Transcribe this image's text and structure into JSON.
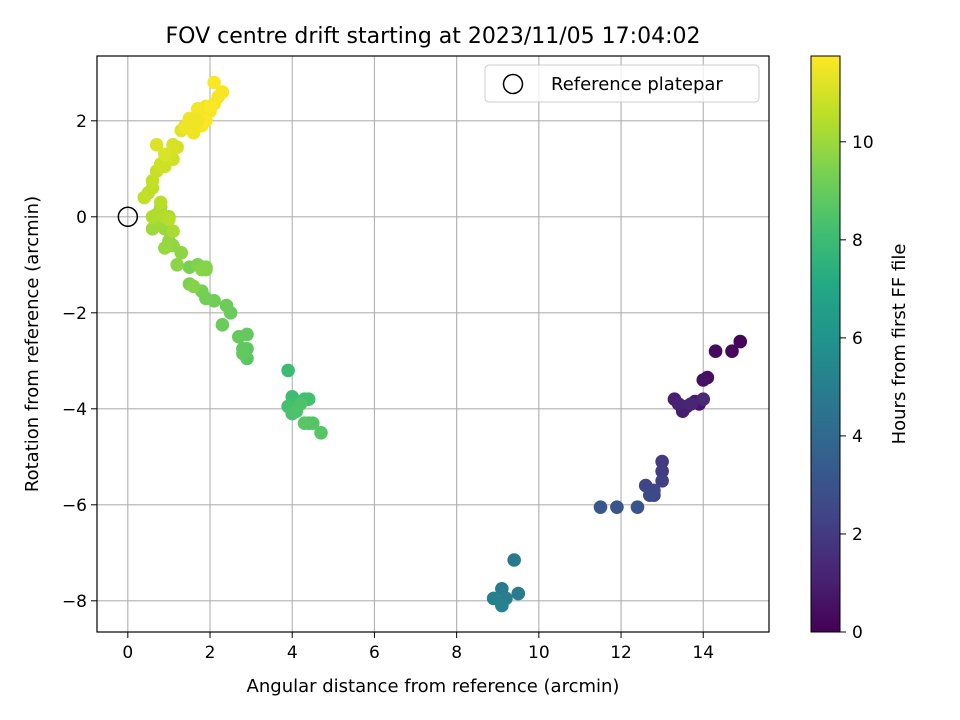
{
  "chart_data": {
    "type": "scatter",
    "title": "FOV centre drift starting at 2023/11/05 17:04:02",
    "xlabel": "Angular distance from reference (arcmin)",
    "ylabel": "Rotation from reference (arcmin)",
    "xlim": [
      -0.75,
      15.6
    ],
    "ylim": [
      -8.65,
      3.35
    ],
    "xticks": [
      0,
      2,
      4,
      6,
      8,
      10,
      12,
      14
    ],
    "yticks": [
      -8,
      -6,
      -4,
      -2,
      0,
      2
    ],
    "grid": true,
    "legend": {
      "placement": "top-right",
      "entries": [
        {
          "label": "Reference platepar",
          "marker": "open-circle"
        }
      ]
    },
    "reference_point": {
      "x": 0,
      "y": 0
    },
    "colorbar": {
      "label": "Hours from first FF file",
      "colormap": "viridis",
      "range": [
        0,
        11.75
      ],
      "ticks": [
        0,
        2,
        4,
        6,
        8,
        10
      ]
    },
    "series": [
      {
        "x": [
          14.9,
          14.7,
          14.3,
          14.1,
          14.0,
          13.9,
          13.8,
          13.6,
          13.5,
          13.3,
          13.4,
          13.7,
          14.0,
          13.0,
          13.0,
          13.0,
          12.8,
          12.6,
          12.8,
          12.7,
          12.4,
          11.9,
          11.5,
          9.4,
          9.1,
          9.5,
          9.2,
          8.9,
          9.1,
          3.9,
          4.0,
          4.1,
          4.3,
          4.4,
          4.0,
          3.9,
          4.0,
          4.1,
          4.2,
          4.4,
          4.5,
          4.7,
          4.3,
          2.9,
          2.9,
          2.8,
          2.8,
          2.9,
          2.7,
          2.5,
          2.3,
          2.4,
          2.1,
          1.9,
          1.8,
          1.8,
          1.5,
          1.5,
          1.7,
          1.9,
          1.9,
          1.6,
          1.8,
          1.2,
          1.3,
          1.1,
          1.0,
          0.9,
          0.9,
          0.8,
          0.6,
          0.7,
          1.0,
          1.1,
          0.8,
          0.7,
          0.6,
          0.9,
          1.0,
          0.8,
          0.5,
          0.6,
          0.4,
          0.6,
          0.7,
          0.8,
          0.9,
          1.1,
          1.0,
          1.2,
          1.1,
          0.9,
          0.7,
          1.3,
          1.4,
          1.5,
          1.6,
          1.7,
          1.8,
          1.9,
          1.8,
          2.0,
          2.1,
          2.2,
          2.3,
          2.1,
          2.0,
          1.9,
          1.6,
          1.5,
          1.7,
          1.5,
          1.4,
          1.7
        ],
        "y": [
          -2.6,
          -2.8,
          -2.8,
          -3.35,
          -3.4,
          -3.9,
          -3.85,
          -3.95,
          -4.05,
          -3.8,
          -3.9,
          -3.9,
          -3.8,
          -5.1,
          -5.3,
          -5.5,
          -5.8,
          -5.6,
          -5.7,
          -5.8,
          -6.05,
          -6.05,
          -6.05,
          -7.15,
          -7.75,
          -7.85,
          -7.95,
          -7.95,
          -8.1,
          -3.2,
          -3.75,
          -3.9,
          -3.8,
          -3.8,
          -4.0,
          -3.95,
          -4.1,
          -4.05,
          -3.9,
          -4.3,
          -4.3,
          -4.5,
          -4.3,
          -2.95,
          -2.75,
          -2.75,
          -2.85,
          -2.45,
          -2.5,
          -2.0,
          -2.25,
          -1.85,
          -1.75,
          -1.7,
          -1.55,
          -1.05,
          -1.05,
          -1.4,
          -1.0,
          -1.1,
          -1.05,
          -1.45,
          -1.1,
          -1.0,
          -0.75,
          -0.6,
          -0.5,
          -0.65,
          -0.25,
          -0.15,
          -0.25,
          -0.05,
          0.0,
          -0.3,
          0.2,
          0.05,
          0.0,
          0.0,
          -0.05,
          0.3,
          0.5,
          0.6,
          0.4,
          0.75,
          0.95,
          1.1,
          1.05,
          1.2,
          1.3,
          1.45,
          1.5,
          1.3,
          1.5,
          1.8,
          1.9,
          2.0,
          1.85,
          2.1,
          2.0,
          2.3,
          1.9,
          2.2,
          2.35,
          2.5,
          2.6,
          2.8,
          2.3,
          2.0,
          1.75,
          1.9,
          2.25,
          2.05,
          1.85,
          2.0
        ],
        "c": [
          0.15,
          0.25,
          0.35,
          0.45,
          0.55,
          0.65,
          0.75,
          0.85,
          0.95,
          1.05,
          1.15,
          1.25,
          1.35,
          2.0,
          2.1,
          2.2,
          2.3,
          2.4,
          2.5,
          2.6,
          3.0,
          3.1,
          3.2,
          4.7,
          4.8,
          4.9,
          5.0,
          5.1,
          5.2,
          8.0,
          8.05,
          8.1,
          8.15,
          8.2,
          8.25,
          8.3,
          8.35,
          8.4,
          8.45,
          8.5,
          8.55,
          8.6,
          8.65,
          8.7,
          8.75,
          8.8,
          8.85,
          8.9,
          8.95,
          9.0,
          9.05,
          9.1,
          9.15,
          9.2,
          9.25,
          9.3,
          9.35,
          9.4,
          9.45,
          9.5,
          9.55,
          9.6,
          9.65,
          9.7,
          9.75,
          9.8,
          9.85,
          9.9,
          9.95,
          10.0,
          10.05,
          10.1,
          10.15,
          10.2,
          10.25,
          10.3,
          10.35,
          10.4,
          10.45,
          10.5,
          10.55,
          10.6,
          10.65,
          10.7,
          10.75,
          10.8,
          10.85,
          10.9,
          10.95,
          11.0,
          11.05,
          11.1,
          11.15,
          11.2,
          11.25,
          11.3,
          11.35,
          11.4,
          11.45,
          11.5,
          11.55,
          11.6,
          11.62,
          11.64,
          11.66,
          11.68,
          11.7,
          11.72,
          11.5,
          11.45,
          11.55,
          11.5,
          11.48,
          11.52
        ]
      }
    ]
  }
}
